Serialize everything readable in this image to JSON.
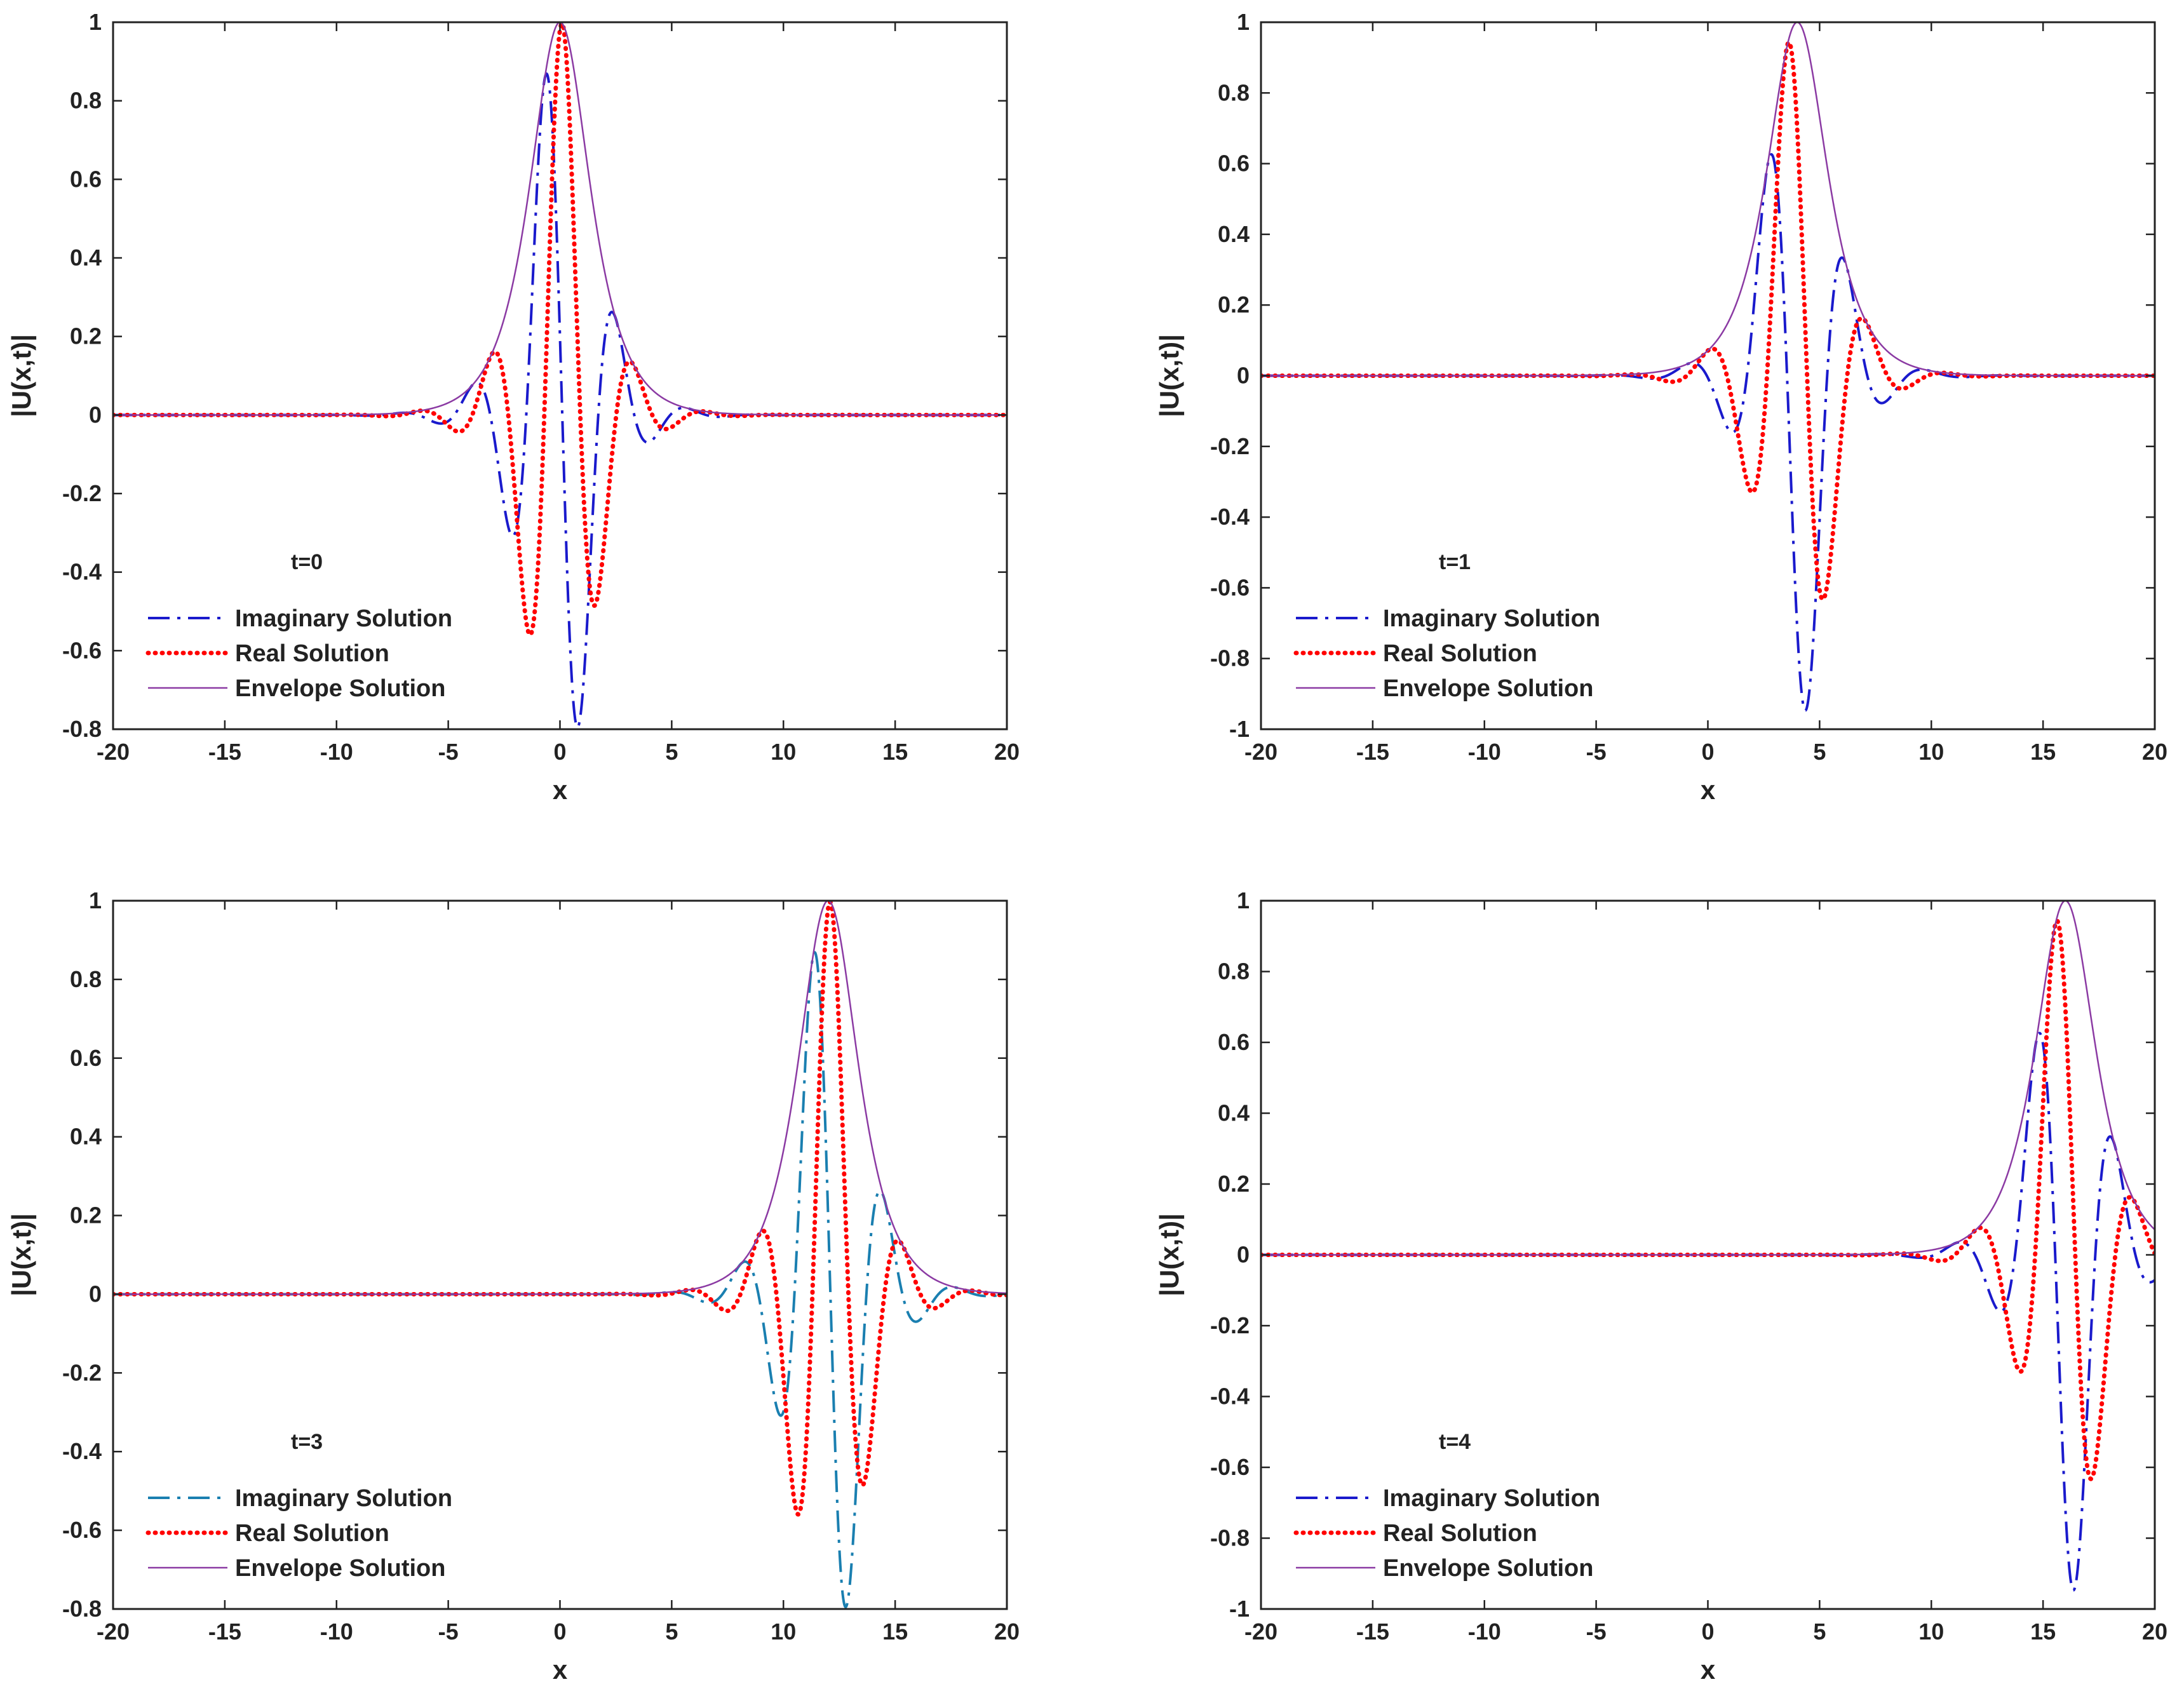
{
  "figure": {
    "description": "Four panels showing soliton solutions at different times"
  },
  "chart_data": [
    {
      "type": "line",
      "panel": "top-left",
      "time_label": "t=0",
      "xlabel": "x",
      "ylabel": "|U(x,t)|",
      "xlim": [
        -20,
        20
      ],
      "ylim": [
        -0.8,
        1
      ],
      "xticks": [
        -20,
        -15,
        -10,
        -5,
        0,
        5,
        10,
        15,
        20
      ],
      "yticks": [
        -0.8,
        -0.6,
        -0.4,
        -0.2,
        0,
        0.2,
        0.4,
        0.6,
        0.8,
        1
      ],
      "ytick_labels": [
        "-0.8",
        "-0.6",
        "-0.4",
        "-0.2",
        "0",
        "0.2",
        "0.4",
        "0.6",
        "0.8",
        "1"
      ],
      "legend_position": "lower-left",
      "model": {
        "center": 0,
        "width": 1.2,
        "omega": 1.95,
        "phase": -0.2,
        "imag_color": "#1a1acc"
      },
      "series": [
        {
          "name": "Imaginary Solution",
          "style": "dash-dot",
          "color": "#1a1acc"
        },
        {
          "name": "Real Solution",
          "style": "dotted",
          "color": "#ff0000"
        },
        {
          "name": "Envelope Solution",
          "style": "solid",
          "color": "#8b3aa3"
        }
      ]
    },
    {
      "type": "line",
      "panel": "top-right",
      "time_label": "t=1",
      "xlabel": "x",
      "ylabel": "|U(x,t)|",
      "xlim": [
        -20,
        20
      ],
      "ylim": [
        -1,
        1
      ],
      "xticks": [
        -20,
        -15,
        -10,
        -5,
        0,
        5,
        10,
        15,
        20
      ],
      "yticks": [
        -1,
        -0.8,
        -0.6,
        -0.4,
        -0.2,
        0,
        0.2,
        0.4,
        0.6,
        0.8,
        1
      ],
      "ytick_labels": [
        "-1",
        "-0.8",
        "-0.6",
        "-0.4",
        "-0.2",
        "0",
        "0.2",
        "0.4",
        "0.6",
        "0.8",
        "1"
      ],
      "legend_position": "lower-left",
      "model": {
        "center": 4,
        "width": 1.2,
        "omega": 1.75,
        "phase": 0.8,
        "imag_color": "#1a1acc"
      },
      "series": [
        {
          "name": "Imaginary Solution",
          "style": "dash-dot",
          "color": "#1a1acc"
        },
        {
          "name": "Real Solution",
          "style": "dotted",
          "color": "#ff0000"
        },
        {
          "name": "Envelope Solution",
          "style": "solid",
          "color": "#8b3aa3"
        }
      ]
    },
    {
      "type": "line",
      "panel": "bottom-left",
      "time_label": "t=3",
      "xlabel": "x",
      "ylabel": "|U(x,t)|",
      "xlim": [
        -20,
        20
      ],
      "ylim": [
        -0.8,
        1
      ],
      "xticks": [
        -20,
        -15,
        -10,
        -5,
        0,
        5,
        10,
        15,
        20
      ],
      "yticks": [
        -0.8,
        -0.6,
        -0.4,
        -0.2,
        0,
        0.2,
        0.4,
        0.6,
        0.8,
        1
      ],
      "ytick_labels": [
        "-0.8",
        "-0.6",
        "-0.4",
        "-0.2",
        "0",
        "0.2",
        "0.4",
        "0.6",
        "0.8",
        "1"
      ],
      "legend_position": "lower-left",
      "model": {
        "center": 12,
        "width": 1.2,
        "omega": 1.95,
        "phase": -0.2,
        "imag_color": "#1a7fb0"
      },
      "series": [
        {
          "name": "Imaginary Solution",
          "style": "dash-dot",
          "color": "#1a7fb0"
        },
        {
          "name": "Real Solution",
          "style": "dotted",
          "color": "#ff0000"
        },
        {
          "name": "Envelope Solution",
          "style": "solid",
          "color": "#8b3aa3"
        }
      ]
    },
    {
      "type": "line",
      "panel": "bottom-right",
      "time_label": "t=4",
      "xlabel": "x",
      "ylabel": "|U(x,t)|",
      "xlim": [
        -20,
        20
      ],
      "ylim": [
        -1,
        1
      ],
      "xticks": [
        -20,
        -15,
        -10,
        -5,
        0,
        5,
        10,
        15,
        20
      ],
      "yticks": [
        -1,
        -0.8,
        -0.6,
        -0.4,
        -0.2,
        0,
        0.2,
        0.4,
        0.6,
        0.8,
        1
      ],
      "ytick_labels": [
        "-1",
        "-0.8",
        "-0.6",
        "-0.4",
        "-0.2",
        "0",
        "0.2",
        "0.4",
        "0.6",
        "0.8",
        "1"
      ],
      "legend_position": "lower-left",
      "model": {
        "center": 16,
        "width": 1.2,
        "omega": 1.75,
        "phase": 0.8,
        "imag_color": "#1a1acc"
      },
      "series": [
        {
          "name": "Imaginary Solution",
          "style": "dash-dot",
          "color": "#1a1acc"
        },
        {
          "name": "Real Solution",
          "style": "dotted",
          "color": "#ff0000"
        },
        {
          "name": "Envelope Solution",
          "style": "solid",
          "color": "#8b3aa3"
        }
      ]
    }
  ]
}
